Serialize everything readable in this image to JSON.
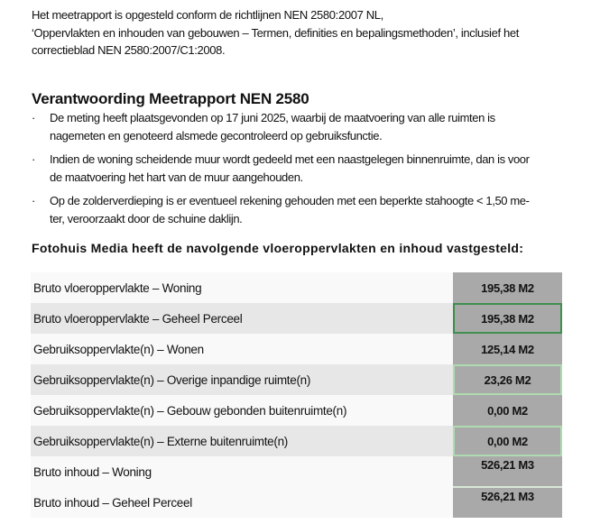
{
  "intro": [
    "Het meetrapport is opgesteld conform de richtlijnen NEN 2580:2007 NL,",
    "‘Oppervlakten en inhouden van gebouwen – Termen, definities en bepalingsmethoden’, inclusief het",
    "correctieblad NEN 2580:2007/C1:2008."
  ],
  "heading": "Verantwoording Meetrapport NEN 2580",
  "bullet_char": "·",
  "bullets": [
    [
      "De meting heeft plaatsgevonden op 17 juni 2025, waarbij de maatvoering van alle ruimten is",
      "nagemeten en genoteerd alsmede gecontroleerd op gebruiksfunctie."
    ],
    [
      "Indien de woning scheidende muur wordt gedeeld met een naastgelegen binnenruimte, dan is voor",
      "de maatvoering het hart van de muur aangehouden."
    ],
    [
      "Op de zolderverdieping is er eventueel rekening gehouden met een beperkte stahoogte < 1,50 me-",
      "ter, veroorzaakt door de schuine daklijn."
    ]
  ],
  "table_title": "Fotohuis Media heeft de navolgende vloeroppervlakten en inhoud vastgesteld:",
  "rows": [
    {
      "label": "Bruto vloeroppervlakte – Woning",
      "value": "195,38 M2"
    },
    {
      "label": "Bruto vloeroppervlakte – Geheel Perceel",
      "value": "195,38 M2"
    },
    {
      "label": "Gebruiksoppervlakte(n) – Wonen",
      "value": "125,14 M2"
    },
    {
      "label": "Gebruiksoppervlakte(n) – Overige inpandige ruimte(n)",
      "value": "23,26 M2"
    },
    {
      "label": "Gebruiksoppervlakte(n) – Gebouw gebonden buitenruimte(n)",
      "value": "0,00 M2"
    },
    {
      "label": "Gebruiksoppervlakte(n) – Externe buitenruimte(n)",
      "value": "0,00 M2"
    },
    {
      "label": "Bruto inhoud – Woning",
      "value": "526,21 M3"
    },
    {
      "label": "Bruto inhoud – Geheel Perceel",
      "value": "526,21 M3"
    }
  ],
  "colors": {
    "value_cell": "#a9a9a9",
    "highlight_dark_green": "#3f8f4f",
    "highlight_light_green": "#aedbb0"
  }
}
